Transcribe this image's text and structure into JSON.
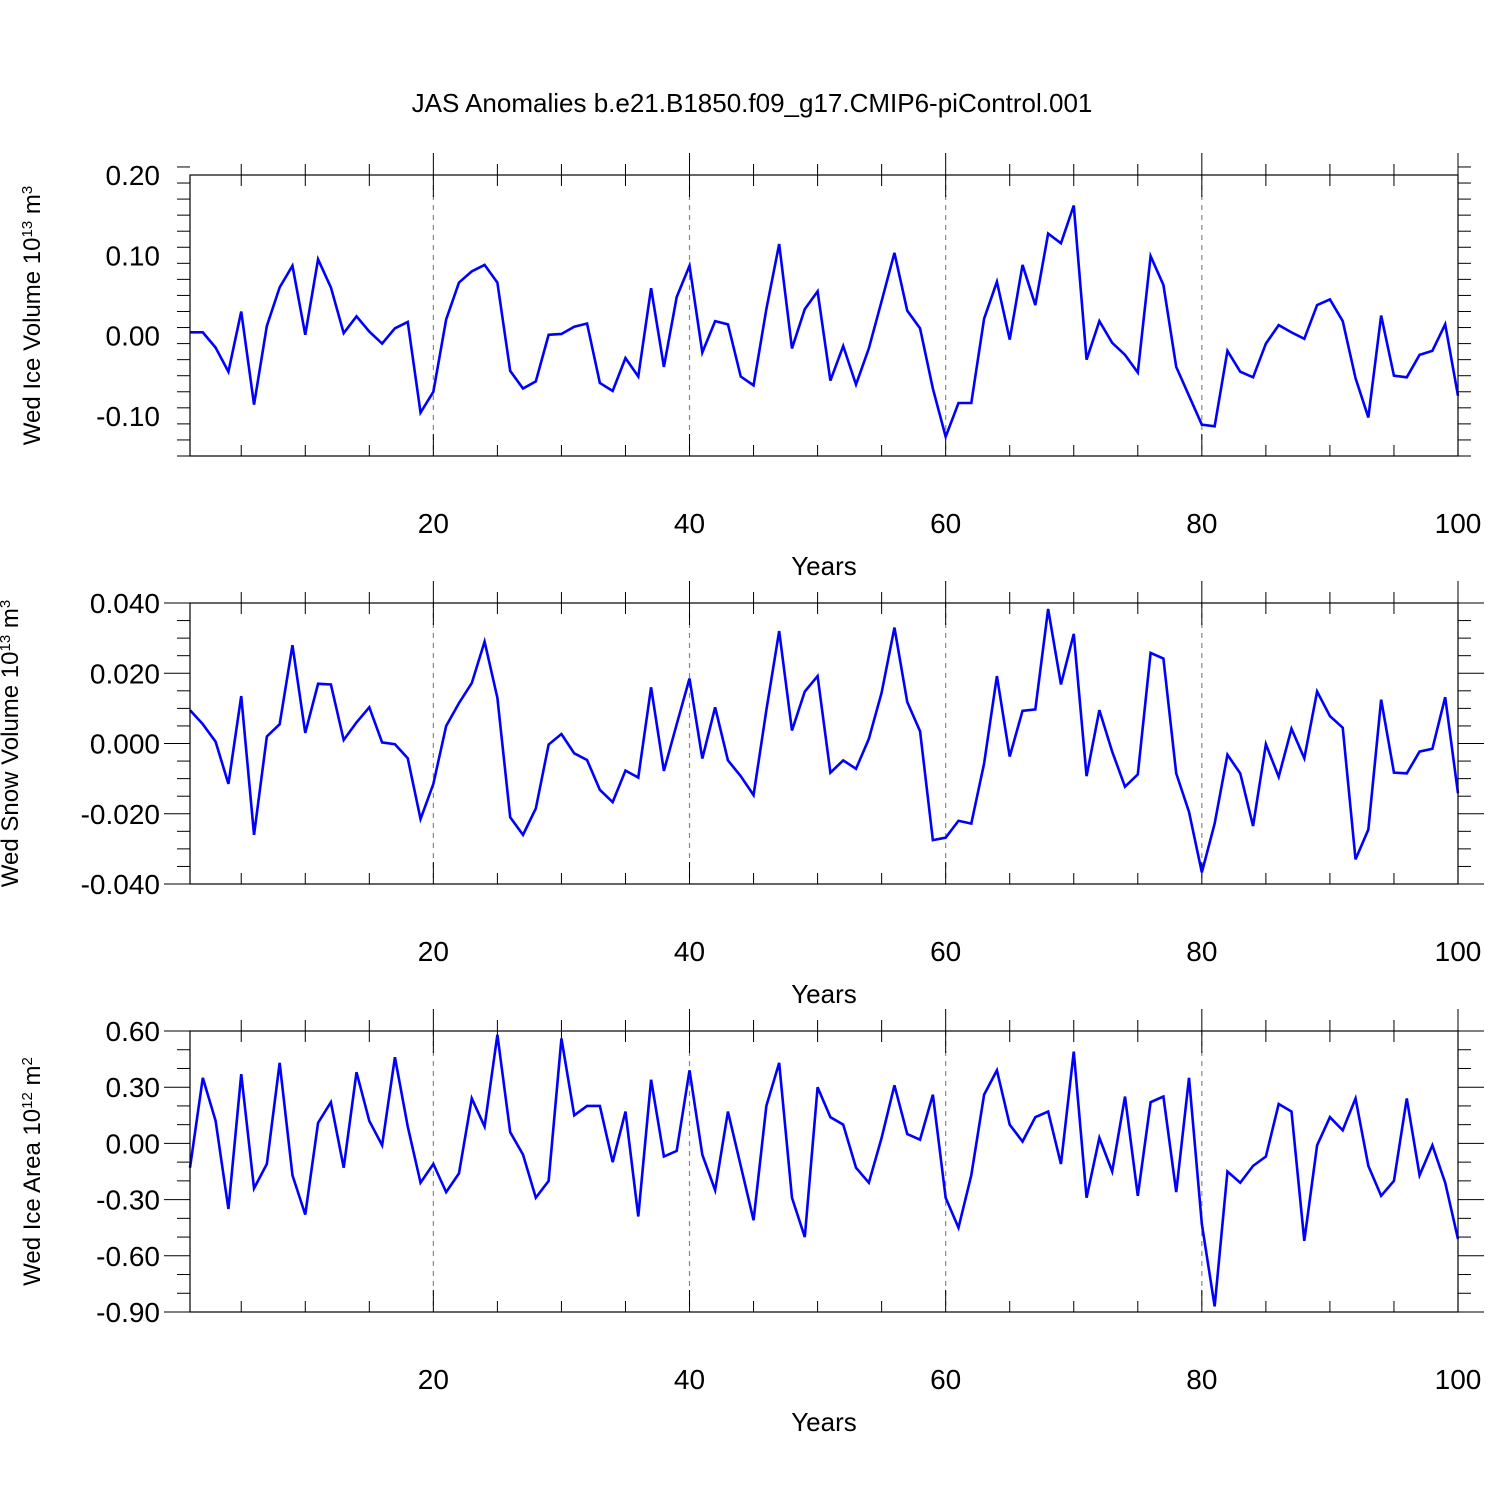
{
  "title": "JAS Anomalies b.e21.B1850.f09_g17.CMIP6-piControl.001",
  "colors": {
    "line": "#0000ff",
    "axis": "#000000",
    "grid": "#888888"
  },
  "chart_data": [
    {
      "type": "line",
      "name": "ice-volume",
      "ylabel_main": "Wed Ice Volume 10",
      "ylabel_exp": "13",
      "ylabel_unit": " m",
      "ylabel_unit_exp": "3",
      "xlabel": "Years",
      "xlim": [
        1,
        100
      ],
      "ylim": [
        -0.15,
        0.2
      ],
      "xticks": [
        20,
        40,
        60,
        80,
        100
      ],
      "xtick_labels": [
        "20",
        "40",
        "60",
        "80",
        "100"
      ],
      "yticks": [
        0.2,
        0.1,
        0.0,
        -0.1
      ],
      "ytick_labels": [
        "0.20",
        "0.10",
        "0.00",
        "-0.10"
      ],
      "yminor_step": 0.02,
      "gridlines_x": [
        20,
        40,
        60,
        80
      ],
      "x": [
        1,
        2,
        3,
        4,
        5,
        6,
        7,
        8,
        9,
        10,
        11,
        12,
        13,
        14,
        15,
        16,
        17,
        18,
        19,
        20,
        21,
        22,
        23,
        24,
        25,
        26,
        27,
        28,
        29,
        30,
        31,
        32,
        33,
        34,
        35,
        36,
        37,
        38,
        39,
        40,
        41,
        42,
        43,
        44,
        45,
        46,
        47,
        48,
        49,
        50,
        51,
        52,
        53,
        54,
        55,
        56,
        57,
        58,
        59,
        60,
        61,
        62,
        63,
        64,
        65,
        66,
        67,
        68,
        69,
        70,
        71,
        72,
        73,
        74,
        75,
        76,
        77,
        78,
        79,
        80,
        81,
        82,
        83,
        84,
        85,
        86,
        87,
        88,
        89,
        90,
        91,
        92,
        93,
        94,
        95,
        96,
        97,
        98,
        99,
        100
      ],
      "values": [
        0.004,
        0.004,
        -0.015,
        -0.045,
        0.03,
        -0.086,
        0.012,
        0.06,
        0.087,
        0.001,
        0.095,
        0.06,
        0.003,
        0.024,
        0.005,
        -0.01,
        0.009,
        0.017,
        -0.096,
        -0.07,
        0.02,
        0.066,
        0.08,
        0.088,
        0.066,
        -0.044,
        -0.066,
        -0.057,
        0.001,
        0.002,
        0.011,
        0.015,
        -0.059,
        -0.069,
        -0.028,
        -0.051,
        0.059,
        -0.039,
        0.048,
        0.087,
        -0.021,
        0.018,
        0.014,
        -0.051,
        -0.062,
        0.033,
        0.114,
        -0.016,
        0.033,
        0.055,
        -0.056,
        -0.013,
        -0.061,
        -0.016,
        0.043,
        0.103,
        0.031,
        0.009,
        -0.066,
        -0.126,
        -0.084,
        -0.084,
        0.021,
        0.067,
        -0.005,
        0.088,
        0.038,
        0.127,
        0.115,
        0.162,
        -0.03,
        0.018,
        -0.009,
        -0.024,
        -0.046,
        0.099,
        0.063,
        -0.039,
        -0.075,
        -0.111,
        -0.113,
        -0.019,
        -0.045,
        -0.052,
        -0.01,
        0.013,
        0.004,
        -0.004,
        0.038,
        0.045,
        0.018,
        -0.053,
        -0.102,
        0.025,
        -0.05,
        -0.052,
        -0.024,
        -0.019,
        0.014,
        -0.075
      ]
    },
    {
      "type": "line",
      "name": "snow-volume",
      "ylabel_main": "Wed Snow Volume 10",
      "ylabel_exp": "13",
      "ylabel_unit": " m",
      "ylabel_unit_exp": "3",
      "xlabel": "Years",
      "xlim": [
        1,
        100
      ],
      "ylim": [
        -0.04,
        0.04
      ],
      "xticks": [
        20,
        40,
        60,
        80,
        100
      ],
      "xtick_labels": [
        "20",
        "40",
        "60",
        "80",
        "100"
      ],
      "yticks": [
        0.04,
        0.02,
        0.0,
        -0.02,
        -0.04
      ],
      "ytick_labels": [
        "0.040",
        "0.020",
        "0.000",
        "-0.020",
        "-0.040"
      ],
      "yminor_step": 0.005,
      "gridlines_x": [
        20,
        40,
        60,
        80
      ],
      "x": [
        1,
        2,
        3,
        4,
        5,
        6,
        7,
        8,
        9,
        10,
        11,
        12,
        13,
        14,
        15,
        16,
        17,
        18,
        19,
        20,
        21,
        22,
        23,
        24,
        25,
        26,
        27,
        28,
        29,
        30,
        31,
        32,
        33,
        34,
        35,
        36,
        37,
        38,
        39,
        40,
        41,
        42,
        43,
        44,
        45,
        46,
        47,
        48,
        49,
        50,
        51,
        52,
        53,
        54,
        55,
        56,
        57,
        58,
        59,
        60,
        61,
        62,
        63,
        64,
        65,
        66,
        67,
        68,
        69,
        70,
        71,
        72,
        73,
        74,
        75,
        76,
        77,
        78,
        79,
        80,
        81,
        82,
        83,
        84,
        85,
        86,
        87,
        88,
        89,
        90,
        91,
        92,
        93,
        94,
        95,
        96,
        97,
        98,
        99,
        100
      ],
      "values": [
        0.0095,
        0.0055,
        0.0005,
        -0.0115,
        0.0135,
        -0.026,
        0.002,
        0.0055,
        0.028,
        0.003,
        0.017,
        0.0168,
        0.001,
        0.006,
        0.0103,
        0.0003,
        -0.0002,
        -0.0042,
        -0.0215,
        -0.0115,
        0.005,
        0.0115,
        0.0172,
        0.029,
        0.013,
        -0.021,
        -0.026,
        -0.0185,
        -0.0003,
        0.0027,
        -0.0028,
        -0.0047,
        -0.0132,
        -0.0167,
        -0.0077,
        -0.0097,
        0.016,
        -0.0078,
        0.0055,
        0.0185,
        -0.0043,
        0.0103,
        -0.0048,
        -0.0093,
        -0.0147,
        0.0095,
        0.032,
        0.0037,
        0.0148,
        0.0192,
        -0.0083,
        -0.0048,
        -0.0072,
        0.0013,
        0.0145,
        0.033,
        0.0118,
        0.0035,
        -0.0275,
        -0.0268,
        -0.022,
        -0.0228,
        -0.0057,
        0.0192,
        -0.0037,
        0.0093,
        0.0097,
        0.0383,
        0.0168,
        0.0312,
        -0.0093,
        0.0095,
        -0.0023,
        -0.0123,
        -0.0088,
        0.0258,
        0.0242,
        -0.0085,
        -0.0195,
        -0.0367,
        -0.0228,
        -0.0032,
        -0.0085,
        -0.0235,
        -0.0002,
        -0.0095,
        0.0042,
        -0.0042,
        0.0148,
        0.0078,
        0.0045,
        -0.033,
        -0.0245,
        0.0125,
        -0.0083,
        -0.0085,
        -0.0023,
        -0.0015,
        0.0132,
        -0.0142
      ]
    },
    {
      "type": "line",
      "name": "ice-area",
      "ylabel_main": "Wed Ice Area 10",
      "ylabel_exp": "12",
      "ylabel_unit": " m",
      "ylabel_unit_exp": "2",
      "xlabel": "Years",
      "xlim": [
        1,
        100
      ],
      "ylim": [
        -0.9,
        0.6
      ],
      "xticks": [
        20,
        40,
        60,
        80,
        100
      ],
      "xtick_labels": [
        "20",
        "40",
        "60",
        "80",
        "100"
      ],
      "yticks": [
        0.6,
        0.3,
        0.0,
        -0.3,
        -0.6,
        -0.9
      ],
      "ytick_labels": [
        "0.60",
        "0.30",
        "0.00",
        "-0.30",
        "-0.60",
        "-0.90"
      ],
      "yminor_step": 0.1,
      "gridlines_x": [
        20,
        40,
        60,
        80
      ],
      "x": [
        1,
        2,
        3,
        4,
        5,
        6,
        7,
        8,
        9,
        10,
        11,
        12,
        13,
        14,
        15,
        16,
        17,
        18,
        19,
        20,
        21,
        22,
        23,
        24,
        25,
        26,
        27,
        28,
        29,
        30,
        31,
        32,
        33,
        34,
        35,
        36,
        37,
        38,
        39,
        40,
        41,
        42,
        43,
        44,
        45,
        46,
        47,
        48,
        49,
        50,
        51,
        52,
        53,
        54,
        55,
        56,
        57,
        58,
        59,
        60,
        61,
        62,
        63,
        64,
        65,
        66,
        67,
        68,
        69,
        70,
        71,
        72,
        73,
        74,
        75,
        76,
        77,
        78,
        79,
        80,
        81,
        82,
        83,
        84,
        85,
        86,
        87,
        88,
        89,
        90,
        91,
        92,
        93,
        94,
        95,
        96,
        97,
        98,
        99,
        100
      ],
      "values": [
        -0.13,
        0.35,
        0.12,
        -0.35,
        0.37,
        -0.24,
        -0.11,
        0.43,
        -0.17,
        -0.38,
        0.11,
        0.22,
        -0.13,
        0.38,
        0.12,
        -0.01,
        0.46,
        0.09,
        -0.21,
        -0.11,
        -0.26,
        -0.16,
        0.24,
        0.09,
        0.58,
        0.06,
        -0.06,
        -0.29,
        -0.2,
        0.56,
        0.15,
        0.2,
        0.2,
        -0.1,
        0.17,
        -0.39,
        0.34,
        -0.07,
        -0.04,
        0.39,
        -0.06,
        -0.25,
        0.17,
        -0.12,
        -0.41,
        0.2,
        0.43,
        -0.29,
        -0.5,
        0.3,
        0.14,
        0.1,
        -0.13,
        -0.21,
        0.03,
        0.31,
        0.05,
        0.02,
        0.26,
        -0.29,
        -0.45,
        -0.17,
        0.26,
        0.39,
        0.1,
        0.01,
        0.14,
        0.17,
        -0.11,
        0.49,
        -0.29,
        0.03,
        -0.15,
        0.25,
        -0.28,
        0.22,
        0.25,
        -0.26,
        0.35,
        -0.43,
        -0.87,
        -0.15,
        -0.21,
        -0.12,
        -0.07,
        0.21,
        0.17,
        -0.52,
        -0.01,
        0.14,
        0.07,
        0.24,
        -0.12,
        -0.28,
        -0.2,
        0.24,
        -0.17,
        -0.01,
        -0.21,
        -0.51
      ]
    }
  ]
}
